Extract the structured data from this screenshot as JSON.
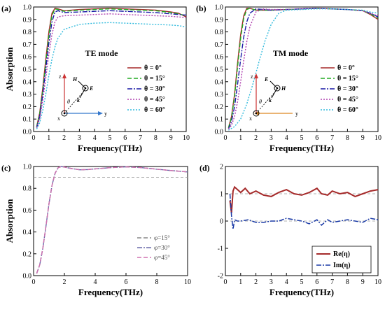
{
  "chart_data": [
    {
      "id": "a",
      "type": "line",
      "panel_label": "(a)",
      "annotation": "TE mode",
      "xlabel": "Frequency(THz)",
      "ylabel": "Absorption",
      "xlim": [
        0,
        10
      ],
      "ylim": [
        0,
        1.0
      ],
      "xticks": [
        0,
        1,
        2,
        3,
        4,
        5,
        6,
        7,
        8,
        9,
        10
      ],
      "yticks": [
        0.0,
        0.1,
        0.2,
        0.3,
        0.4,
        0.5,
        0.6,
        0.7,
        0.8,
        0.9,
        1.0
      ],
      "yticklabels": [
        "0.0",
        "0.1",
        "0.2",
        "0.3",
        "0.4",
        "0.5",
        "0.6",
        "0.7",
        "0.8",
        "0.9",
        "1.0"
      ],
      "legend_position": "right",
      "inset_labels": {
        "z": "z",
        "y": "y",
        "x": "x",
        "H": "H",
        "E": "E",
        "k": "k",
        "theta": "θ"
      },
      "series": [
        {
          "name": "θ = 0°",
          "color": "#a52a2a",
          "dash": "solid",
          "x": [
            0.2,
            0.4,
            0.6,
            0.8,
            1.0,
            1.2,
            1.4,
            1.6,
            2,
            3,
            4,
            5,
            6,
            7,
            8,
            9,
            9.5,
            10
          ],
          "y": [
            0.04,
            0.15,
            0.35,
            0.58,
            0.8,
            0.95,
            0.99,
            0.985,
            0.97,
            0.98,
            0.985,
            0.99,
            0.985,
            0.98,
            0.975,
            0.96,
            0.95,
            0.92
          ]
        },
        {
          "name": "θ = 15°",
          "color": "#22aa22",
          "dash": "dashed",
          "x": [
            0.2,
            0.4,
            0.6,
            0.8,
            1.0,
            1.2,
            1.4,
            1.6,
            2,
            3,
            4,
            5,
            6,
            7,
            8,
            9,
            9.5,
            10
          ],
          "y": [
            0.04,
            0.14,
            0.33,
            0.55,
            0.77,
            0.93,
            0.985,
            0.98,
            0.965,
            0.975,
            0.98,
            0.985,
            0.98,
            0.975,
            0.97,
            0.955,
            0.945,
            0.93
          ]
        },
        {
          "name": "θ = 30°",
          "color": "#1a1aa6",
          "dash": "dashdot",
          "x": [
            0.2,
            0.4,
            0.6,
            0.8,
            1.0,
            1.2,
            1.4,
            1.6,
            2,
            3,
            4,
            5,
            6,
            7,
            8,
            9,
            9.5,
            10
          ],
          "y": [
            0.03,
            0.12,
            0.3,
            0.5,
            0.71,
            0.88,
            0.96,
            0.97,
            0.955,
            0.96,
            0.965,
            0.97,
            0.965,
            0.96,
            0.955,
            0.945,
            0.94,
            0.935
          ]
        },
        {
          "name": "θ = 45°",
          "color": "#b040b0",
          "dash": "dotted",
          "x": [
            0.2,
            0.4,
            0.6,
            0.8,
            1.0,
            1.2,
            1.4,
            1.6,
            2,
            3,
            4,
            5,
            6,
            7,
            8,
            9,
            9.5,
            10
          ],
          "y": [
            0.03,
            0.1,
            0.25,
            0.43,
            0.62,
            0.78,
            0.88,
            0.92,
            0.93,
            0.935,
            0.94,
            0.945,
            0.94,
            0.935,
            0.93,
            0.925,
            0.92,
            0.915
          ]
        },
        {
          "name": "θ = 60°",
          "color": "#33bbdd",
          "dash": "dotted",
          "x": [
            0.2,
            0.4,
            0.6,
            0.8,
            1.0,
            1.2,
            1.4,
            1.6,
            2,
            3,
            4,
            5,
            6,
            7,
            8,
            9,
            9.5,
            10
          ],
          "y": [
            0.02,
            0.07,
            0.17,
            0.3,
            0.45,
            0.58,
            0.68,
            0.75,
            0.82,
            0.86,
            0.87,
            0.875,
            0.87,
            0.865,
            0.86,
            0.855,
            0.85,
            0.84
          ]
        }
      ]
    },
    {
      "id": "b",
      "type": "line",
      "panel_label": "(b)",
      "annotation": "TM mode",
      "xlabel": "Frequency(THz)",
      "ylabel": "",
      "xlim": [
        0,
        10
      ],
      "ylim": [
        0,
        1.0
      ],
      "xticks": [
        0,
        1,
        2,
        3,
        4,
        5,
        6,
        7,
        8,
        9,
        10
      ],
      "yticks": [
        0.0,
        0.1,
        0.2,
        0.3,
        0.4,
        0.5,
        0.6,
        0.7,
        0.8,
        0.9,
        1.0
      ],
      "yticklabels": [
        "0.0",
        "0.1",
        "0.2",
        "0.3",
        "0.4",
        "0.5",
        "0.6",
        "0.7",
        "0.8",
        "0.9",
        "1.0"
      ],
      "legend_position": "right",
      "inset_labels": {
        "z": "z",
        "y": "y",
        "x": "x",
        "H": "H",
        "E": "E",
        "k": "k",
        "theta": "θ"
      },
      "series": [
        {
          "name": "θ = 0°",
          "color": "#a52a2a",
          "dash": "solid",
          "x": [
            0.2,
            0.4,
            0.6,
            0.8,
            1.0,
            1.2,
            1.4,
            1.6,
            2,
            3,
            4,
            5,
            6,
            7,
            8,
            9,
            9.5,
            10
          ],
          "y": [
            0.03,
            0.12,
            0.3,
            0.55,
            0.78,
            0.93,
            0.99,
            0.99,
            0.975,
            0.975,
            0.98,
            0.985,
            0.99,
            0.985,
            0.98,
            0.97,
            0.94,
            0.9
          ]
        },
        {
          "name": "θ = 15°",
          "color": "#22aa22",
          "dash": "dashed",
          "x": [
            0.2,
            0.4,
            0.6,
            0.8,
            1.0,
            1.2,
            1.4,
            1.6,
            2,
            3,
            4,
            5,
            6,
            7,
            8,
            9,
            9.5,
            10
          ],
          "y": [
            0.03,
            0.11,
            0.28,
            0.52,
            0.75,
            0.91,
            0.98,
            0.99,
            0.975,
            0.975,
            0.98,
            0.985,
            0.99,
            0.985,
            0.98,
            0.97,
            0.945,
            0.91
          ]
        },
        {
          "name": "θ = 30°",
          "color": "#1a1aa6",
          "dash": "dashdot",
          "x": [
            0.2,
            0.4,
            0.6,
            0.8,
            1.0,
            1.2,
            1.4,
            1.6,
            2,
            2.5,
            3,
            4,
            5,
            6,
            7,
            8,
            9,
            9.5,
            10
          ],
          "y": [
            0.02,
            0.08,
            0.2,
            0.38,
            0.58,
            0.76,
            0.88,
            0.95,
            0.985,
            0.98,
            0.975,
            0.98,
            0.985,
            0.99,
            0.985,
            0.98,
            0.97,
            0.95,
            0.92
          ]
        },
        {
          "name": "θ = 45°",
          "color": "#b040b0",
          "dash": "dotted",
          "x": [
            0.2,
            0.4,
            0.6,
            0.8,
            1.0,
            1.2,
            1.4,
            1.6,
            2,
            2.5,
            3,
            4,
            5,
            6,
            7,
            8,
            9,
            9.5,
            10
          ],
          "y": [
            0.02,
            0.05,
            0.12,
            0.24,
            0.4,
            0.57,
            0.72,
            0.84,
            0.96,
            0.985,
            0.98,
            0.98,
            0.985,
            0.99,
            0.985,
            0.98,
            0.97,
            0.95,
            0.93
          ]
        },
        {
          "name": "θ = 60°",
          "color": "#33bbdd",
          "dash": "dotted",
          "x": [
            0.2,
            0.6,
            1.0,
            1.4,
            1.8,
            2.2,
            2.6,
            3,
            3.5,
            4,
            5,
            6,
            7,
            8,
            9,
            9.5,
            10
          ],
          "y": [
            0.01,
            0.04,
            0.1,
            0.22,
            0.38,
            0.56,
            0.73,
            0.86,
            0.95,
            0.975,
            0.98,
            0.985,
            0.985,
            0.98,
            0.975,
            0.96,
            0.95
          ]
        }
      ]
    },
    {
      "id": "c",
      "type": "line",
      "panel_label": "(c)",
      "annotation": "",
      "xlabel": "Frequency(THz)",
      "ylabel": "Absorption",
      "xlim": [
        0,
        10
      ],
      "ylim": [
        0,
        1.0
      ],
      "xticks": [
        0,
        2,
        4,
        6,
        8,
        10
      ],
      "yticks": [
        0.0,
        0.2,
        0.4,
        0.6,
        0.8,
        1.0
      ],
      "yticklabels": [
        "0.0",
        "0.2",
        "0.4",
        "0.6",
        "0.8",
        "1.0"
      ],
      "reference_line_y": 0.9,
      "legend_position": "bottom-right",
      "series": [
        {
          "name": "φ=15°",
          "color": "#888888",
          "dash": "dashed",
          "x": [
            0.2,
            0.4,
            0.6,
            0.8,
            1.0,
            1.2,
            1.4,
            1.6,
            1.8,
            2,
            2.5,
            3,
            3.5,
            4,
            5,
            6,
            7,
            8,
            9,
            10
          ],
          "y": [
            0.02,
            0.1,
            0.25,
            0.45,
            0.66,
            0.83,
            0.94,
            0.99,
            1.0,
            0.995,
            0.98,
            0.97,
            0.972,
            0.978,
            0.99,
            0.997,
            0.99,
            0.975,
            0.962,
            0.95
          ]
        },
        {
          "name": "φ=30°",
          "color": "#6a6aaa",
          "dash": "dashdot",
          "x": [
            0.2,
            0.4,
            0.6,
            0.8,
            1.0,
            1.2,
            1.4,
            1.6,
            1.8,
            2,
            2.5,
            3,
            3.5,
            4,
            5,
            6,
            7,
            8,
            9,
            10
          ],
          "y": [
            0.02,
            0.1,
            0.25,
            0.45,
            0.66,
            0.83,
            0.94,
            0.99,
            1.0,
            0.995,
            0.98,
            0.97,
            0.972,
            0.978,
            0.99,
            0.997,
            0.99,
            0.975,
            0.962,
            0.95
          ]
        },
        {
          "name": "φ=45°",
          "color": "#d070b0",
          "dash": "dashed",
          "x": [
            0.2,
            0.4,
            0.6,
            0.8,
            1.0,
            1.2,
            1.4,
            1.6,
            1.8,
            2,
            2.5,
            3,
            3.5,
            4,
            5,
            6,
            7,
            8,
            9,
            10
          ],
          "y": [
            0.02,
            0.1,
            0.25,
            0.45,
            0.66,
            0.83,
            0.94,
            0.99,
            1.0,
            0.995,
            0.98,
            0.97,
            0.972,
            0.978,
            0.99,
            0.997,
            0.99,
            0.975,
            0.962,
            0.95
          ]
        }
      ]
    },
    {
      "id": "d",
      "type": "line",
      "panel_label": "(d)",
      "annotation": "",
      "xlabel": "Frequency(THz)",
      "ylabel": "",
      "xlim": [
        0,
        10
      ],
      "ylim": [
        -2,
        2
      ],
      "xticks": [
        0,
        1,
        2,
        3,
        4,
        5,
        6,
        7,
        8,
        9,
        10
      ],
      "yticks": [
        -2,
        -1,
        0,
        1,
        2
      ],
      "yticklabels": [
        "-2",
        "-1",
        "0",
        "1",
        "2"
      ],
      "reference_lines_y": [
        1,
        0
      ],
      "legend_position": "bottom-right",
      "series": [
        {
          "name": "Re(η)",
          "color": "#a52a2a",
          "dash": "solid",
          "width": 2,
          "x": [
            0.3,
            0.4,
            0.5,
            0.6,
            0.8,
            1.0,
            1.3,
            1.6,
            2,
            2.5,
            3,
            3.5,
            4,
            4.5,
            5,
            5.5,
            6,
            6.3,
            6.7,
            7,
            7.5,
            8,
            8.5,
            9,
            9.5,
            10
          ],
          "y": [
            0.75,
            0.3,
            1.1,
            1.25,
            1.15,
            1.05,
            1.2,
            1.0,
            1.1,
            0.95,
            0.9,
            1.05,
            1.15,
            1.0,
            0.95,
            1.05,
            1.2,
            1.0,
            0.95,
            1.1,
            1.0,
            1.05,
            0.9,
            1.0,
            1.1,
            1.15
          ]
        },
        {
          "name": "Im(η)",
          "color": "#1a3aa6",
          "dash": "dashdot",
          "width": 1.5,
          "x": [
            0.3,
            0.4,
            0.5,
            0.6,
            0.8,
            1.0,
            1.5,
            2,
            2.5,
            3,
            3.5,
            4,
            4.5,
            5,
            5.5,
            6,
            6.3,
            6.7,
            7,
            7.5,
            8,
            8.5,
            9,
            9.5,
            10
          ],
          "y": [
            1.0,
            0.2,
            -0.3,
            0.05,
            0.0,
            0.0,
            0.05,
            -0.05,
            -0.05,
            0.0,
            0.0,
            0.1,
            0.05,
            0.0,
            -0.1,
            0.05,
            -0.15,
            0.05,
            -0.05,
            0.0,
            0.05,
            0.0,
            -0.05,
            0.1,
            0.05
          ]
        }
      ]
    }
  ]
}
